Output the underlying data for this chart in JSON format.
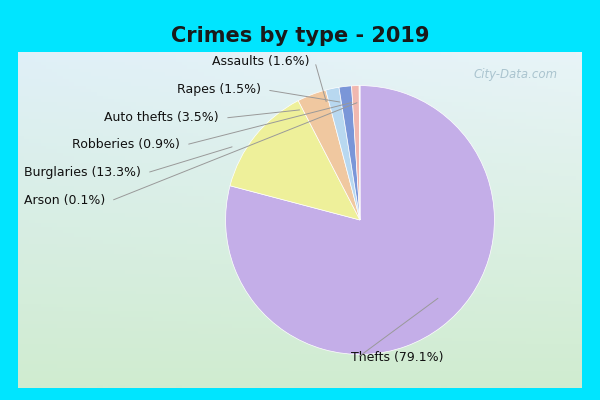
{
  "title": "Crimes by type - 2019",
  "slices": [
    {
      "label": "Thefts",
      "pct": 79.1,
      "color": "#c4aee8"
    },
    {
      "label": "Burglaries",
      "pct": 13.3,
      "color": "#eef09a"
    },
    {
      "label": "Auto thefts",
      "pct": 3.5,
      "color": "#f0c8a0"
    },
    {
      "label": "Assaults",
      "pct": 1.6,
      "color": "#b8d8f0"
    },
    {
      "label": "Rapes",
      "pct": 1.5,
      "color": "#7a96d8"
    },
    {
      "label": "Robberies",
      "pct": 0.9,
      "color": "#f0b8b0"
    },
    {
      "label": "Arson",
      "pct": 0.1,
      "color": "#c8e8c8"
    }
  ],
  "bg_outer": "#00e5ff",
  "bg_inner_tl": "#daeef5",
  "bg_inner_br": "#d5efd5",
  "title_fontsize": 15,
  "label_fontsize": 9,
  "watermark": "City-Data.com"
}
